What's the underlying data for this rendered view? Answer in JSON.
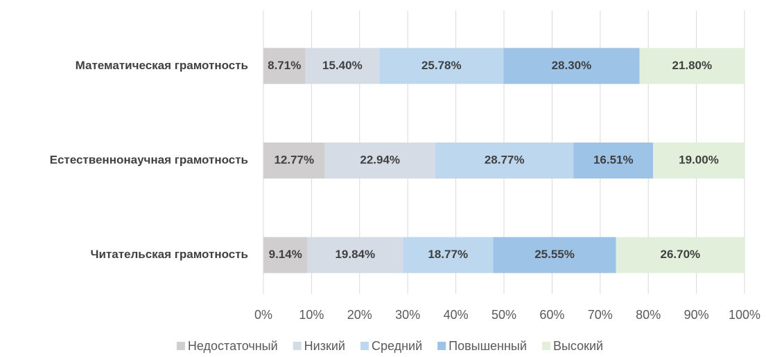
{
  "chart_data": {
    "type": "stacked_bar_horizontal",
    "categories": [
      "Математическая грамотность",
      "Естественнонаучная грамотность",
      "Читательская грамотность"
    ],
    "series": [
      {
        "name": "Недостаточный",
        "color": "#d0cece",
        "values": [
          8.71,
          12.77,
          9.14
        ],
        "value_labels": [
          "8.71%",
          "12.77%",
          "9.14%"
        ]
      },
      {
        "name": "Низкий",
        "color": "#d6dce5",
        "values": [
          15.4,
          22.94,
          19.84
        ],
        "value_labels": [
          "15.40%",
          "22.94%",
          "19.84%"
        ]
      },
      {
        "name": "Средний",
        "color": "#bdd7ee",
        "values": [
          25.78,
          28.77,
          18.77
        ],
        "value_labels": [
          "25.78%",
          "28.77%",
          "18.77%"
        ]
      },
      {
        "name": "Повышенный",
        "color": "#9dc3e6",
        "values": [
          28.3,
          16.51,
          25.55
        ],
        "value_labels": [
          "28.30%",
          "16.51%",
          "25.55%"
        ]
      },
      {
        "name": "Высокий",
        "color": "#e2efda",
        "values": [
          21.8,
          19.0,
          26.7
        ],
        "value_labels": [
          "21.80%",
          "19.00%",
          "26.70%"
        ]
      }
    ],
    "xlim": [
      0,
      100
    ],
    "xticks": [
      {
        "value": 0,
        "label": "0%"
      },
      {
        "value": 10,
        "label": "10%"
      },
      {
        "value": 20,
        "label": "20%"
      },
      {
        "value": 30,
        "label": "30%"
      },
      {
        "value": 40,
        "label": "40%"
      },
      {
        "value": 50,
        "label": "50%"
      },
      {
        "value": 60,
        "label": "60%"
      },
      {
        "value": 70,
        "label": "70%"
      },
      {
        "value": 80,
        "label": "80%"
      },
      {
        "value": 90,
        "label": "90%"
      },
      {
        "value": 100,
        "label": "100%"
      }
    ],
    "grid": true,
    "legend": "bottom"
  }
}
